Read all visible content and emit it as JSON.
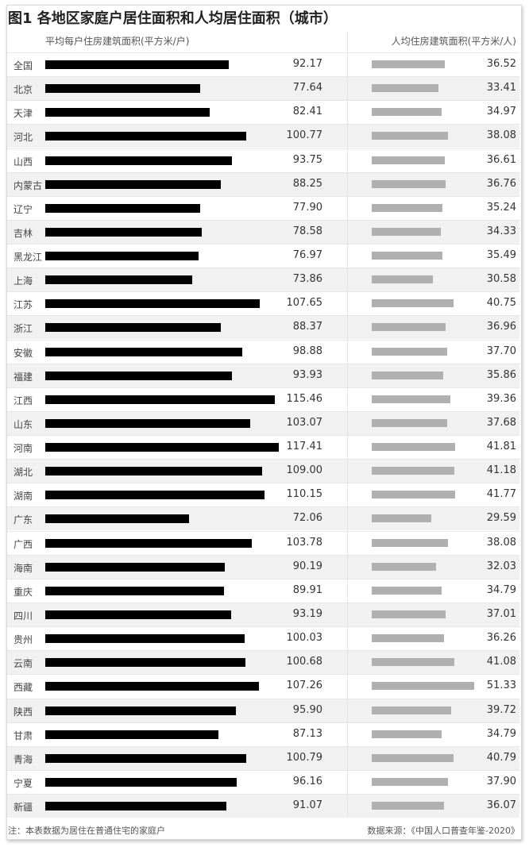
{
  "chart_data": {
    "type": "bar",
    "title": "图1 各地区家庭户居住面积和人均居住面积（城市）",
    "categories": [
      "全国",
      "北京",
      "天津",
      "河北",
      "山西",
      "内蒙古",
      "辽宁",
      "吉林",
      "黑龙江",
      "上海",
      "江苏",
      "浙江",
      "安徽",
      "福建",
      "江西",
      "山东",
      "河南",
      "湖北",
      "湖南",
      "广东",
      "广西",
      "海南",
      "重庆",
      "四川",
      "贵州",
      "云南",
      "西藏",
      "陕西",
      "甘肃",
      "青海",
      "宁夏",
      "新疆"
    ],
    "series": [
      {
        "name": "平均每户住房建筑面积(平方米/户)",
        "color": "#000000",
        "values": [
          92.17,
          77.64,
          82.41,
          100.77,
          93.75,
          88.25,
          77.9,
          78.58,
          76.97,
          73.86,
          107.65,
          88.37,
          98.88,
          93.93,
          115.46,
          103.07,
          117.41,
          109.0,
          110.15,
          72.06,
          103.78,
          90.19,
          89.91,
          93.19,
          100.03,
          100.68,
          107.26,
          95.9,
          87.13,
          100.79,
          96.16,
          91.07
        ]
      },
      {
        "name": "人均住房建筑面积(平方米/人)",
        "color": "#b0b0b0",
        "values": [
          36.52,
          33.41,
          34.97,
          38.08,
          36.61,
          36.76,
          35.24,
          34.33,
          35.49,
          30.58,
          40.75,
          36.96,
          37.7,
          35.86,
          39.36,
          37.68,
          41.81,
          41.18,
          41.77,
          29.59,
          38.08,
          32.03,
          34.79,
          37.01,
          36.26,
          41.08,
          51.33,
          39.72,
          34.79,
          40.79,
          37.9,
          36.07
        ]
      }
    ],
    "orientation": "horizontal",
    "grid": false
  },
  "footer": {
    "note": "注：本表数据为居住在普通住宅的家庭户",
    "source": "数据来源：《中国人口普查年鉴-2020》"
  }
}
